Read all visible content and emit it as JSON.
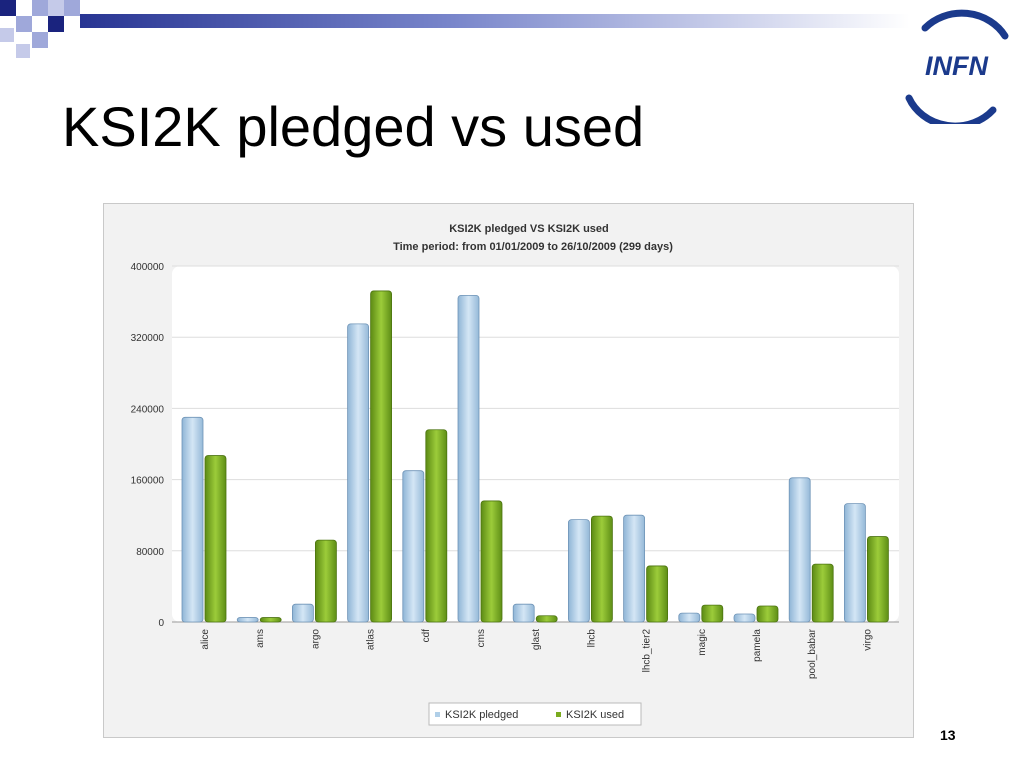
{
  "slide": {
    "title": "KSI2K pledged vs used",
    "page_number": "13"
  },
  "logo": {
    "text": "INFN",
    "color": "#1b3a8c",
    "icon": "infn-logo-icon"
  },
  "decoration": {
    "icon": "corner-squares-decoration",
    "colors": [
      "#1a237e",
      "#9fa8da"
    ]
  },
  "chart_data": {
    "type": "bar",
    "title": "KSI2K pledged VS KSI2K used",
    "subtitle": "Time period: from 01/01/2009 to 26/10/2009 (299 days)",
    "xlabel": "",
    "ylabel": "",
    "ylim": [
      0,
      400000
    ],
    "yticks": [
      0,
      80000,
      160000,
      240000,
      320000,
      400000
    ],
    "ytick_labels": [
      "0",
      "80000",
      "160000",
      "240000",
      "320000",
      "400000"
    ],
    "grid": true,
    "legend_position": "bottom-center",
    "categories": [
      "alice",
      "ams",
      "argo",
      "atlas",
      "cdf",
      "cms",
      "glast",
      "lhcb",
      "lhcb_tier2",
      "magic",
      "pamela",
      "pool_babar",
      "virgo"
    ],
    "series": [
      {
        "name": "KSI2K pledged",
        "color": "#b0cfe8",
        "values": [
          230000,
          5000,
          20000,
          335000,
          170000,
          367000,
          20000,
          115000,
          120000,
          10000,
          9000,
          162000,
          133000
        ]
      },
      {
        "name": "KSI2K used",
        "color": "#7aab1e",
        "values": [
          187000,
          5000,
          92000,
          372000,
          216000,
          136000,
          7000,
          119000,
          63000,
          19000,
          18000,
          65000,
          96000
        ]
      }
    ]
  }
}
